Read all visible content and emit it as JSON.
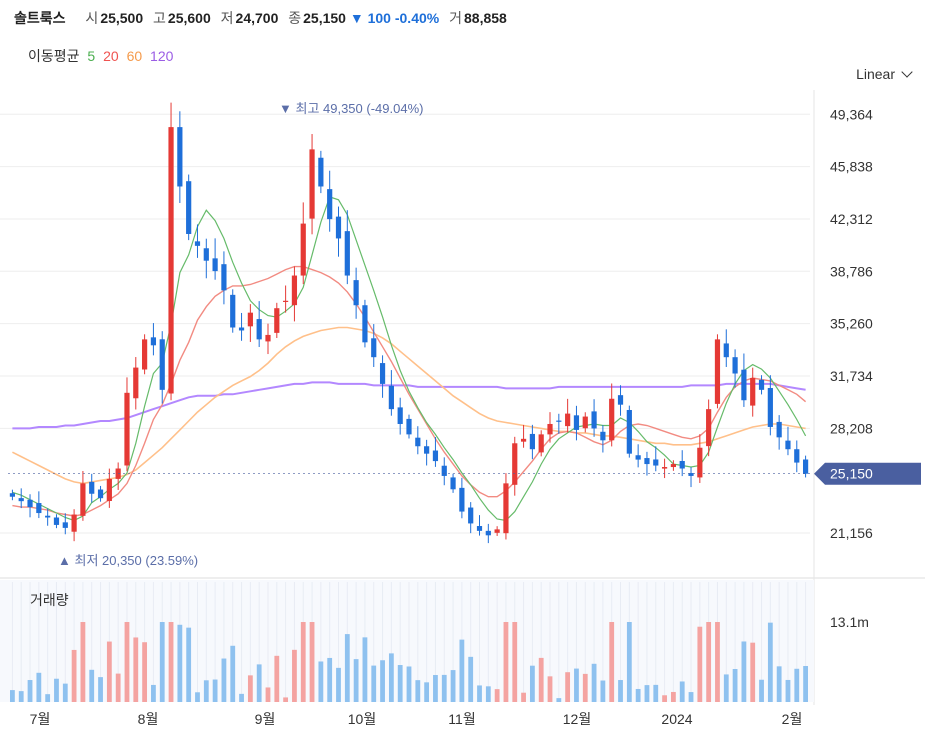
{
  "header": {
    "name": "솔트룩스",
    "open_label": "시",
    "open": "25,500",
    "high_label": "고",
    "high": "25,600",
    "low_label": "저",
    "low": "24,700",
    "close_label": "종",
    "close": "25,150",
    "change_arrow": "▼",
    "change": "100",
    "change_pct": "-0.40%",
    "volume_label": "거",
    "volume": "88,858"
  },
  "moving_average": {
    "label": "이동평균",
    "periods": [
      {
        "period": "5",
        "color": "#4caf50"
      },
      {
        "period": "20",
        "color": "#ef5350"
      },
      {
        "period": "60",
        "color": "#f59b4c"
      },
      {
        "period": "120",
        "color": "#9b5de5"
      }
    ]
  },
  "scale_selector": {
    "label": "Linear",
    "icon": "chevron-down-icon"
  },
  "chart_data": {
    "type": "candlestick",
    "y_ticks": [
      "49,364",
      "45,838",
      "42,312",
      "38,786",
      "35,260",
      "31,734",
      "28,208",
      "21,156"
    ],
    "y_tick_values": [
      49364,
      45838,
      42312,
      38786,
      35260,
      31734,
      28208,
      21156
    ],
    "ylim": [
      19000,
      51000
    ],
    "x_ticks": [
      "7월",
      "8월",
      "9월",
      "10월",
      "11월",
      "12월",
      "2024",
      "2월"
    ],
    "current_price": 25150,
    "current_price_label": "25,150",
    "high_annotation": {
      "text": "최고",
      "value": "49,350",
      "pct": "(-49.04%)",
      "marker": "▼"
    },
    "low_annotation": {
      "text": "최저",
      "value": "20,350",
      "pct": "(23.59%)",
      "marker": "▲"
    },
    "volume_panel": {
      "title": "거래량",
      "tick": "13.1m"
    },
    "up_color": "#e53935",
    "down_color": "#1e6fd9",
    "close_series": [
      23600,
      23300,
      22900,
      22500,
      22200,
      21700,
      21500,
      22400,
      24500,
      23800,
      23500,
      24800,
      25500,
      30600,
      32300,
      34200,
      33800,
      30800,
      48500,
      44500,
      41300,
      40500,
      39500,
      38800,
      37500,
      35000,
      34800,
      36000,
      34200,
      34500,
      36300,
      36800,
      38500,
      42000,
      47000,
      44500,
      42300,
      41000,
      38500,
      36500,
      34000,
      33000,
      31200,
      29500,
      28500,
      27800,
      27000,
      26500,
      26000,
      25000,
      24100,
      22600,
      21800,
      21300,
      21000,
      21400,
      24500,
      27200,
      27500,
      26800,
      27800,
      28500,
      28700,
      29200,
      28100,
      29000,
      28200,
      27400,
      30200,
      29800,
      26500,
      26100,
      25800,
      25700,
      25600,
      25800,
      25500,
      25000,
      26900,
      29500,
      34200,
      33000,
      31900,
      30100,
      31600,
      30800,
      28300,
      27600,
      26800,
      25900,
      25150
    ],
    "ma5": [
      23900,
      23700,
      23400,
      23100,
      22800,
      22500,
      22200,
      22000,
      22300,
      23200,
      23600,
      24100,
      24500,
      25200,
      27200,
      29700,
      31900,
      32600,
      35200,
      38700,
      39900,
      41800,
      42900,
      42200,
      41000,
      39400,
      38000,
      36800,
      36200,
      35800,
      35700,
      36100,
      36600,
      37700,
      39900,
      42100,
      43800,
      43600,
      42600,
      40900,
      39200,
      37500,
      35700,
      33800,
      32100,
      30700,
      29600,
      28600,
      27800,
      26900,
      26100,
      25200,
      24400,
      23500,
      22700,
      22100,
      22000,
      22600,
      23600,
      24600,
      25800,
      26800,
      27500,
      27900,
      28300,
      28400,
      28500,
      28400,
      28400,
      28900,
      28600,
      28000,
      27300,
      26900,
      26400,
      25800,
      25700,
      25600,
      25700,
      26600,
      28300,
      29900,
      31200,
      32100,
      32500,
      32200,
      31600,
      30700,
      29800,
      28800,
      27700
    ],
    "ma20": [
      23000,
      22900,
      22900,
      22800,
      22700,
      22500,
      22400,
      22300,
      22400,
      22700,
      23000,
      23400,
      23800,
      24500,
      25700,
      27200,
      28800,
      29800,
      31200,
      32800,
      34000,
      35500,
      36400,
      37100,
      37500,
      37800,
      37800,
      37900,
      38100,
      38300,
      38600,
      38900,
      39100,
      39100,
      38900,
      38700,
      38400,
      38000,
      37400,
      36600,
      35700,
      34700,
      33700,
      32700,
      31600,
      30500,
      29500,
      28500,
      27500,
      26600,
      25800,
      25000,
      24400,
      23900,
      23600,
      23600,
      24000,
      24600,
      25300,
      26000,
      26800,
      27500,
      27900,
      28000,
      27900,
      27600,
      27300,
      27100,
      27400,
      28000,
      28400,
      28500,
      28400,
      28200,
      28000,
      27800,
      27600,
      27500,
      27700,
      28200,
      29300,
      30300,
      31000,
      31400,
      31600,
      31500,
      31400,
      31100,
      30800,
      30500,
      30000
    ],
    "ma60": [
      26600,
      26300,
      26000,
      25700,
      25400,
      25100,
      24800,
      24600,
      24500,
      24600,
      24700,
      24800,
      24900,
      25100,
      25400,
      25900,
      26400,
      26900,
      27500,
      28100,
      28700,
      29300,
      29800,
      30300,
      30700,
      31100,
      31400,
      31700,
      32100,
      32600,
      33200,
      33700,
      34100,
      34400,
      34600,
      34800,
      34900,
      35000,
      35000,
      34900,
      34800,
      34600,
      34300,
      33900,
      33400,
      32900,
      32400,
      31900,
      31400,
      30900,
      30400,
      30000,
      29600,
      29200,
      28900,
      28700,
      28600,
      28500,
      28400,
      28300,
      28200,
      28100,
      28000,
      28000,
      27900,
      27900,
      27800,
      27700,
      27700,
      27600,
      27500,
      27400,
      27300,
      27200,
      27200,
      27100,
      27100,
      27100,
      27200,
      27300,
      27500,
      27700,
      27900,
      28100,
      28300,
      28400,
      28500,
      28500,
      28400,
      28300,
      28200
    ],
    "ma120": [
      28200,
      28200,
      28200,
      28300,
      28300,
      28300,
      28400,
      28400,
      28500,
      28600,
      28700,
      28700,
      28800,
      28900,
      29100,
      29300,
      29500,
      29700,
      29900,
      30100,
      30300,
      30400,
      30400,
      30400,
      30500,
      30500,
      30600,
      30700,
      30800,
      30900,
      31000,
      31100,
      31200,
      31200,
      31300,
      31300,
      31300,
      31200,
      31200,
      31200,
      31200,
      31100,
      31100,
      31100,
      31100,
      31100,
      31000,
      31000,
      31000,
      31000,
      31000,
      31000,
      31000,
      31000,
      31000,
      31000,
      30900,
      30900,
      30900,
      30900,
      30900,
      30900,
      31000,
      31000,
      31000,
      31000,
      31000,
      31000,
      31000,
      31000,
      31000,
      31000,
      31000,
      31000,
      31000,
      31000,
      31000,
      31100,
      31100,
      31100,
      31100,
      31200,
      31200,
      31200,
      31200,
      31200,
      31200,
      31100,
      31000,
      30900,
      30800
    ]
  }
}
